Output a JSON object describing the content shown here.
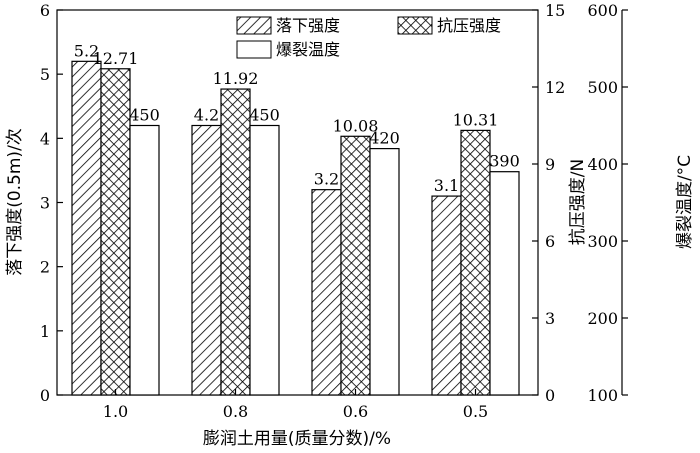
{
  "chart_data": {
    "type": "bar",
    "categories": [
      "1.0",
      "0.8",
      "0.6",
      "0.5"
    ],
    "xlabel": "膨润土用量(质量分数)/%",
    "axes": {
      "left": {
        "label": "落下强度(0.5m)/次",
        "min": 0,
        "max": 6,
        "ticks": [
          0,
          1,
          2,
          3,
          4,
          5,
          6
        ]
      },
      "right1": {
        "label": "抗压强度/N",
        "min": 0,
        "max": 15,
        "ticks": [
          0,
          3,
          6,
          9,
          12,
          15
        ]
      },
      "right2": {
        "label": "爆裂温度/°C",
        "min": 100,
        "max": 600,
        "ticks": [
          100,
          200,
          300,
          400,
          500,
          600
        ]
      }
    },
    "series": [
      {
        "name": "落下强度",
        "axis": "left",
        "pattern": "hatch",
        "values": [
          5.2,
          4.2,
          3.2,
          3.1
        ],
        "labels": [
          "5.2",
          "4.2",
          "3.2",
          "3.1"
        ]
      },
      {
        "name": "抗压强度",
        "axis": "right1",
        "pattern": "crosshatch",
        "values": [
          12.71,
          11.92,
          10.08,
          10.31
        ],
        "labels": [
          "12.71",
          "11.92",
          "10.08",
          "10.31"
        ]
      },
      {
        "name": "爆裂温度",
        "axis": "right2",
        "pattern": "none",
        "values": [
          450,
          450,
          420,
          390
        ],
        "labels": [
          "450",
          "450",
          "420",
          "390"
        ]
      }
    ],
    "legend": {
      "placement": "top-center"
    },
    "grid": false
  }
}
